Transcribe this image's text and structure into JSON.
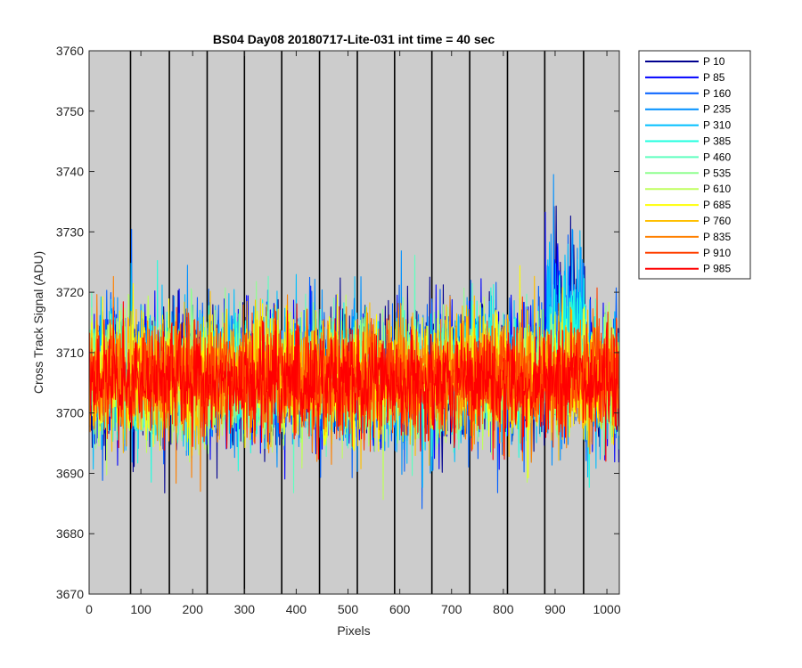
{
  "chart_data": {
    "type": "line",
    "title": "BS04 Day08 20180717-Lite-031 int time = 40 sec",
    "xlabel": "Pixels",
    "ylabel": "Cross Track Signal (ADU)",
    "xlim": [
      0,
      1024
    ],
    "ylim": [
      3670,
      3760
    ],
    "xticks": [
      0,
      100,
      200,
      300,
      400,
      500,
      600,
      700,
      800,
      900,
      1000
    ],
    "yticks": [
      3670,
      3680,
      3690,
      3700,
      3710,
      3720,
      3730,
      3740,
      3750,
      3760
    ],
    "x_tick_labels": [
      "0",
      "100",
      "200",
      "300",
      "400",
      "500",
      "600",
      "700",
      "800",
      "900",
      "1000"
    ],
    "y_tick_labels": [
      "3670",
      "3680",
      "3690",
      "3700",
      "3710",
      "3720",
      "3730",
      "3740",
      "3750",
      "3760"
    ],
    "background_color": "#cccccc",
    "grid": false,
    "vertical_dividers_x": [
      80,
      155,
      228,
      300,
      372,
      445,
      518,
      590,
      662,
      735,
      808,
      880,
      955
    ],
    "legend_position": "outside-right",
    "series": [
      {
        "name": "P 10",
        "color": "#00008f",
        "mean": 3706,
        "spread": 10
      },
      {
        "name": "P 85",
        "color": "#0000ff",
        "mean": 3706,
        "spread": 10
      },
      {
        "name": "P 160",
        "color": "#005fff",
        "mean": 3706,
        "spread": 10
      },
      {
        "name": "P 235",
        "color": "#0090ff",
        "mean": 3706,
        "spread": 10
      },
      {
        "name": "P 310",
        "color": "#00bfff",
        "mean": 3706,
        "spread": 10
      },
      {
        "name": "P 385",
        "color": "#1fffdf",
        "mean": 3706,
        "spread": 9
      },
      {
        "name": "P 460",
        "color": "#5fffbf",
        "mean": 3706,
        "spread": 9
      },
      {
        "name": "P 535",
        "color": "#8fff8f",
        "mean": 3706,
        "spread": 9
      },
      {
        "name": "P 610",
        "color": "#bfff5f",
        "mean": 3706,
        "spread": 9
      },
      {
        "name": "P 685",
        "color": "#ffff00",
        "mean": 3706,
        "spread": 9
      },
      {
        "name": "P 760",
        "color": "#ffbf00",
        "mean": 3706,
        "spread": 9
      },
      {
        "name": "P 835",
        "color": "#ff8000",
        "mean": 3706,
        "spread": 9
      },
      {
        "name": "P 910",
        "color": "#ff4000",
        "mean": 3706,
        "spread": 8
      },
      {
        "name": "P 985",
        "color": "#ff0000",
        "mean": 3705,
        "spread": 8
      }
    ]
  }
}
